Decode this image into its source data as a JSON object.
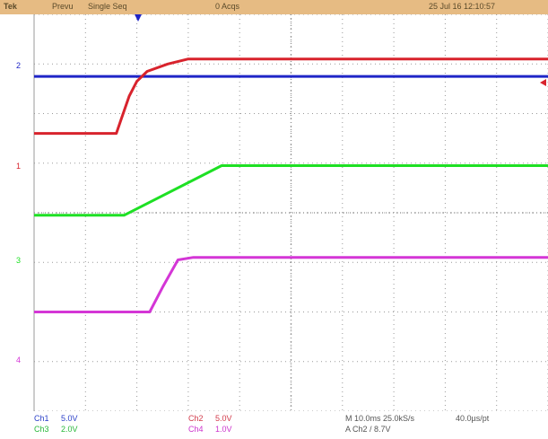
{
  "topbar": {
    "tek": "Tek",
    "status": "Prevu",
    "mode": "Single Seq",
    "acq": "0 Acqs",
    "date": "25 Jul 16 12:10:57"
  },
  "channel_markers": {
    "ch1": "1",
    "ch2": "2",
    "ch3": "3",
    "ch4": "4"
  },
  "colors": {
    "ch1": "#d8232d",
    "ch2": "#1f25c7",
    "ch3": "#1ee024",
    "ch4": "#d436d6",
    "grid": "#9a9a9a",
    "topbar": "#e6bb83"
  },
  "icons": [
    "trigger-position-icon",
    "trigger-level-icon"
  ],
  "readout": {
    "ch1_label": "Ch1",
    "ch1_scale": "5.0V",
    "ch2_label": "Ch2",
    "ch2_scale": "5.0V",
    "ch3_label": "Ch3",
    "ch3_scale": "2.0V",
    "ch4_label": "Ch4",
    "ch4_scale": "1.0V",
    "timebase": "M 10.0ms 25.0kS/s",
    "sample_interval": "40.0µs/pt",
    "trigger": "A Ch2 / 8.7V"
  },
  "chart_data": {
    "type": "line",
    "x_unit": "div",
    "y_unit": "div",
    "xlim": [
      0,
      10
    ],
    "ylim": [
      -4,
      4
    ],
    "grid": true,
    "series": [
      {
        "name": "Ch2",
        "points": [
          [
            0,
            2.75
          ],
          [
            10,
            2.75
          ]
        ]
      },
      {
        "name": "Ch1",
        "points": [
          [
            0,
            1.6
          ],
          [
            1.6,
            1.6
          ],
          [
            1.7,
            1.9
          ],
          [
            1.85,
            2.35
          ],
          [
            2.0,
            2.65
          ],
          [
            2.2,
            2.85
          ],
          [
            2.6,
            3.0
          ],
          [
            3.0,
            3.1
          ],
          [
            10,
            3.1
          ]
        ]
      },
      {
        "name": "Ch3",
        "points": [
          [
            0,
            -0.05
          ],
          [
            1.75,
            -0.05
          ],
          [
            3.65,
            0.95
          ],
          [
            10,
            0.95
          ]
        ]
      },
      {
        "name": "Ch4",
        "points": [
          [
            0,
            -2.0
          ],
          [
            2.25,
            -2.0
          ],
          [
            2.5,
            -1.5
          ],
          [
            2.8,
            -0.95
          ],
          [
            3.1,
            -0.9
          ],
          [
            10,
            -0.9
          ]
        ]
      }
    ]
  }
}
